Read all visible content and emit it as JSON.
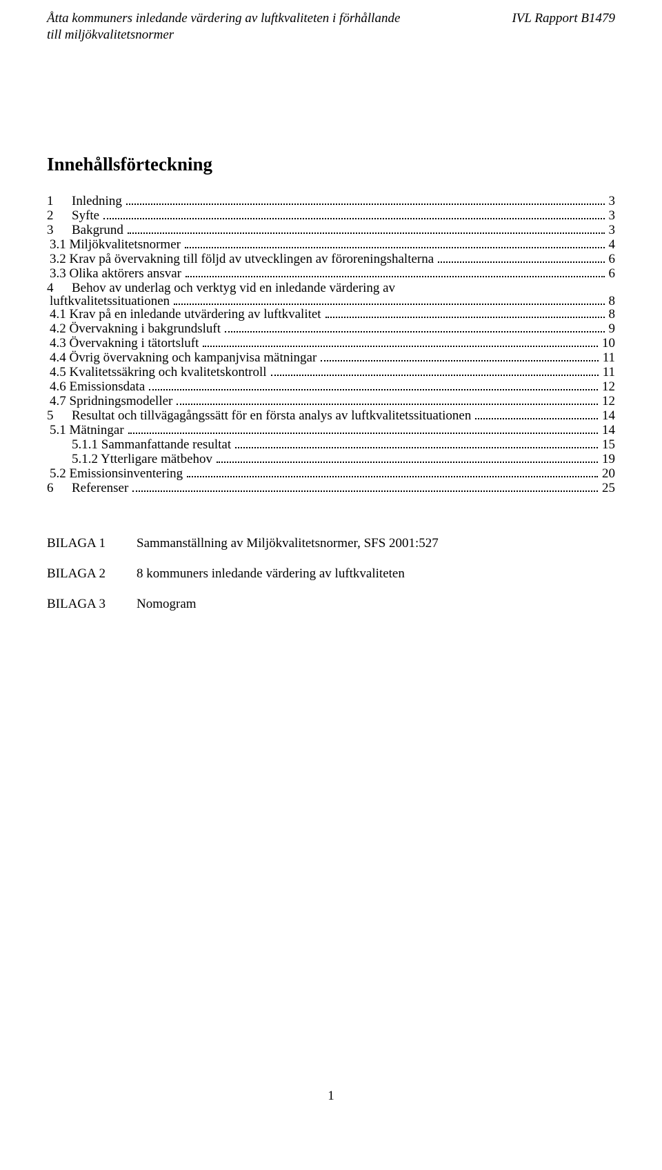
{
  "header": {
    "title_line1": "Åtta kommuners inledande värdering av luftkvaliteten i förhållande",
    "title_line2": "till miljökvalitetsnormer",
    "report": "IVL Rapport B1479"
  },
  "toc_title": "Innehållsförteckning",
  "toc": [
    {
      "level": 1,
      "num": "1",
      "label": "Inledning",
      "page": "3",
      "gap": false
    },
    {
      "level": 1,
      "num": "2",
      "label": "Syfte",
      "page": "3",
      "gap": true
    },
    {
      "level": 1,
      "num": "3",
      "label": "Bakgrund",
      "page": "3",
      "gap": true
    },
    {
      "level": 2,
      "num": "3.1",
      "label": "Miljökvalitetsnormer",
      "page": "4",
      "gap": false
    },
    {
      "level": 2,
      "num": "3.2",
      "label": "Krav på övervakning till följd av utvecklingen av föroreningshalterna",
      "page": "6",
      "gap": false
    },
    {
      "level": 2,
      "num": "3.3",
      "label": "Olika aktörers ansvar",
      "page": "6",
      "gap": false
    },
    {
      "level": 1,
      "num": "4",
      "label_line1": "Behov av underlag och verktyg vid en inledande värdering av",
      "label_line2": "luftkvalitetssituationen",
      "page": "8",
      "gap": true,
      "wrap": true
    },
    {
      "level": 2,
      "num": "4.1",
      "label": "Krav på en inledande utvärdering av luftkvalitet",
      "page": "8",
      "gap": false
    },
    {
      "level": 2,
      "num": "4.2",
      "label": "Övervakning i bakgrundsluft",
      "page": "9",
      "gap": false
    },
    {
      "level": 2,
      "num": "4.3",
      "label": "Övervakning i tätortsluft",
      "page": "10",
      "gap": false
    },
    {
      "level": 2,
      "num": "4.4",
      "label": "Övrig övervakning och kampanjvisa mätningar",
      "page": "11",
      "gap": false
    },
    {
      "level": 2,
      "num": "4.5",
      "label": "Kvalitetssäkring och kvalitetskontroll",
      "page": "11",
      "gap": false
    },
    {
      "level": 2,
      "num": "4.6",
      "label": "Emissionsdata",
      "page": "12",
      "gap": false
    },
    {
      "level": 2,
      "num": "4.7",
      "label": "Spridningsmodeller",
      "page": "12",
      "gap": false
    },
    {
      "level": 1,
      "num": "5",
      "label": "Resultat och tillvägagångssätt för en första analys av luftkvalitetssituationen",
      "page": "14",
      "gap": true
    },
    {
      "level": 2,
      "num": "5.1",
      "label": "Mätningar",
      "page": "14",
      "gap": false
    },
    {
      "level": 3,
      "num": "5.1.1",
      "label": "Sammanfattande resultat",
      "page": "15",
      "gap": false
    },
    {
      "level": 3,
      "num": "5.1.2",
      "label": "Ytterligare mätbehov",
      "page": "19",
      "gap": false
    },
    {
      "level": 2,
      "num": "5.2",
      "label": "Emissionsinventering",
      "page": "20",
      "gap": false
    },
    {
      "level": 1,
      "num": "6",
      "label": "Referenser",
      "page": "25",
      "gap": true
    }
  ],
  "bilagor": [
    {
      "key": "BILAGA 1",
      "val": "Sammanställning av Miljökvalitetsnormer, SFS 2001:527"
    },
    {
      "key": "BILAGA 2",
      "val": "8 kommuners inledande värdering av luftkvaliteten"
    },
    {
      "key": "BILAGA 3",
      "val": "Nomogram"
    }
  ],
  "page_number": "1",
  "colors": {
    "text": "#000000",
    "background": "#ffffff",
    "leader": "#000000"
  },
  "typography": {
    "base_font": "Times New Roman",
    "header_fontsize_pt": 14,
    "title_fontsize_pt": 20,
    "body_fontsize_pt": 14
  }
}
